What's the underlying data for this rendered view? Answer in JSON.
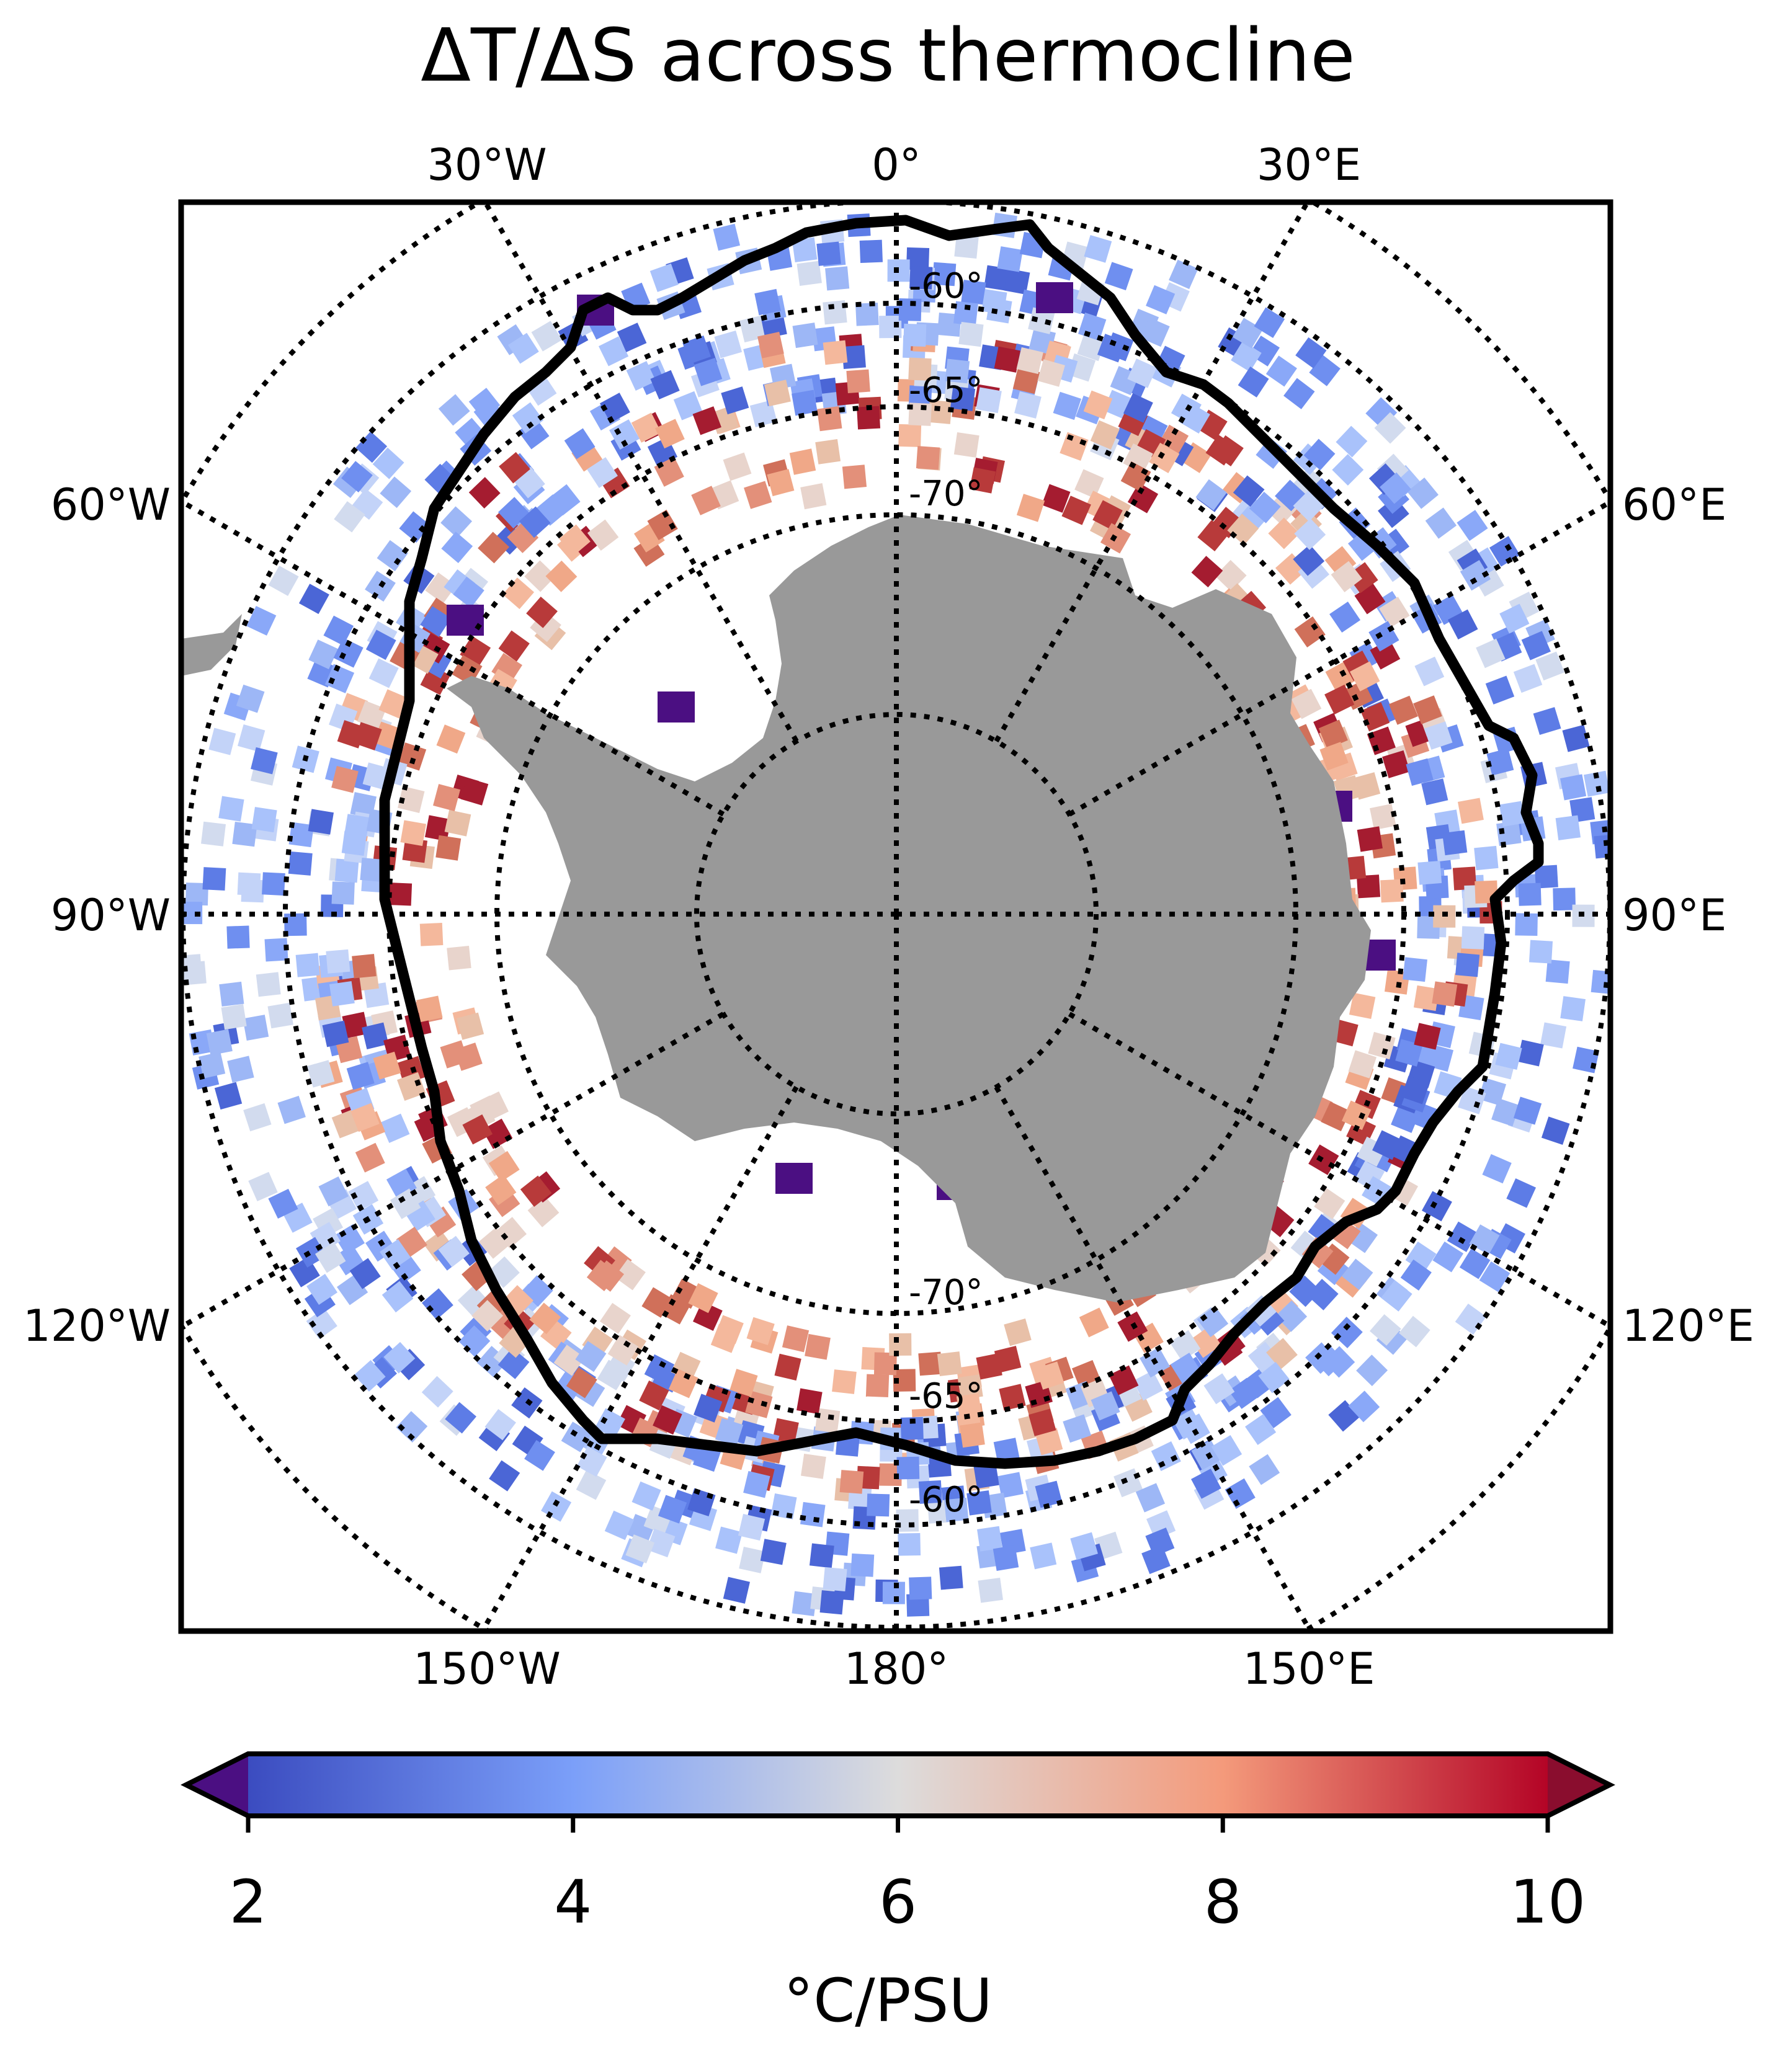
{
  "title": "ΔT/ΔS across thermocline",
  "colorbar": {
    "label": "°C/PSU",
    "ticks": [
      "2",
      "4",
      "6",
      "8",
      "10"
    ],
    "min": 2,
    "max": 10,
    "extend": "both",
    "colormap": "coolwarm",
    "under_color": "#4b0f82",
    "over_color": "#8a0d2e"
  },
  "map": {
    "projection": "south-polar-stereographic",
    "land_color": "#999999",
    "boundary_line": "front",
    "lon_labels": {
      "top": [
        "30°W",
        "0°",
        "30°E"
      ],
      "left": [
        "60°W",
        "90°W",
        "120°W"
      ],
      "right": [
        "60°E",
        "90°E",
        "120°E"
      ],
      "bottom": [
        "150°W",
        "180°",
        "150°E"
      ]
    },
    "lat_labels_upper": [
      "-60°",
      "-65°",
      "-70°"
    ],
    "lat_labels_lower": [
      "-70°",
      "-65°",
      "-60°"
    ]
  }
}
